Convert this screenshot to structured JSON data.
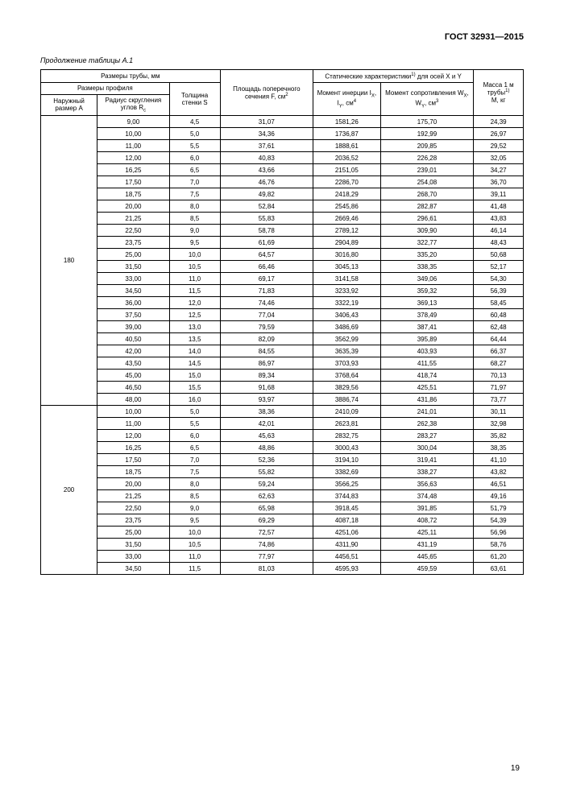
{
  "document": {
    "gost": "ГОСТ 32931—2015",
    "caption": "Продолжение таблицы А.1",
    "page": "19"
  },
  "headers": {
    "h1": "Размеры трубы, мм",
    "h2": "Площадь поперечного сечения F, см",
    "h3_pre": "Статические характеристики",
    "h3_post": " для осей X и Y",
    "h4_pre": "Масса 1 м трубы",
    "h4_post": " M, кг",
    "sub1": "Размеры профиля",
    "sub2": "Толщина стенки S",
    "sub3": "Момент инерции I",
    "sub3b": ", I",
    "sub3c": ", см",
    "sub4": "Момент сопротивления W",
    "sub4b": ", W",
    "sub4c": ", см",
    "left1": "Наружный размер A",
    "left2": "Радиус скругления углов R",
    "exp2": "2",
    "exp4": "4",
    "exp3": "3",
    "exp1": "1)",
    "subX": "X",
    "subY": "Y",
    "subC": "с"
  },
  "groups": [
    {
      "outer": "180",
      "rows": [
        [
          "9,00",
          "4,5",
          "31,07",
          "1581,26",
          "175,70",
          "24,39"
        ],
        [
          "10,00",
          "5,0",
          "34,36",
          "1736,87",
          "192,99",
          "26,97"
        ],
        [
          "11,00",
          "5,5",
          "37,61",
          "1888,61",
          "209,85",
          "29,52"
        ],
        [
          "12,00",
          "6,0",
          "40,83",
          "2036,52",
          "226,28",
          "32,05"
        ],
        [
          "16,25",
          "6,5",
          "43,66",
          "2151,05",
          "239,01",
          "34,27"
        ],
        [
          "17,50",
          "7,0",
          "46,76",
          "2286,70",
          "254,08",
          "36,70"
        ],
        [
          "18,75",
          "7,5",
          "49,82",
          "2418,29",
          "268,70",
          "39,11"
        ],
        [
          "20,00",
          "8,0",
          "52,84",
          "2545,86",
          "282,87",
          "41,48"
        ],
        [
          "21,25",
          "8,5",
          "55,83",
          "2669,46",
          "296,61",
          "43,83"
        ],
        [
          "22,50",
          "9,0",
          "58,78",
          "2789,12",
          "309,90",
          "46,14"
        ],
        [
          "23,75",
          "9,5",
          "61,69",
          "2904,89",
          "322,77",
          "48,43"
        ],
        [
          "25,00",
          "10,0",
          "64,57",
          "3016,80",
          "335,20",
          "50,68"
        ],
        [
          "31,50",
          "10,5",
          "66,46",
          "3045,13",
          "338,35",
          "52,17"
        ],
        [
          "33,00",
          "11,0",
          "69,17",
          "3141,58",
          "349,06",
          "54,30"
        ],
        [
          "34,50",
          "11,5",
          "71,83",
          "3233,92",
          "359,32",
          "56,39"
        ],
        [
          "36,00",
          "12,0",
          "74,46",
          "3322,19",
          "369,13",
          "58,45"
        ],
        [
          "37,50",
          "12,5",
          "77,04",
          "3406,43",
          "378,49",
          "60,48"
        ],
        [
          "39,00",
          "13,0",
          "79,59",
          "3486,69",
          "387,41",
          "62,48"
        ],
        [
          "40,50",
          "13,5",
          "82,09",
          "3562,99",
          "395,89",
          "64,44"
        ],
        [
          "42,00",
          "14,0",
          "84,55",
          "3635,39",
          "403,93",
          "66,37"
        ],
        [
          "43,50",
          "14,5",
          "86,97",
          "3703,93",
          "411,55",
          "68,27"
        ],
        [
          "45,00",
          "15,0",
          "89,34",
          "3768,64",
          "418,74",
          "70,13"
        ],
        [
          "46,50",
          "15,5",
          "91,68",
          "3829,56",
          "425,51",
          "71,97"
        ],
        [
          "48,00",
          "16,0",
          "93,97",
          "3886,74",
          "431,86",
          "73,77"
        ]
      ]
    },
    {
      "outer": "200",
      "rows": [
        [
          "10,00",
          "5,0",
          "38,36",
          "2410,09",
          "241,01",
          "30,11"
        ],
        [
          "11,00",
          "5,5",
          "42,01",
          "2623,81",
          "262,38",
          "32,98"
        ],
        [
          "12,00",
          "6,0",
          "45,63",
          "2832,75",
          "283,27",
          "35,82"
        ],
        [
          "16,25",
          "6,5",
          "48,86",
          "3000,43",
          "300,04",
          "38,35"
        ],
        [
          "17,50",
          "7,0",
          "52,36",
          "3194,10",
          "319,41",
          "41,10"
        ],
        [
          "18,75",
          "7,5",
          "55,82",
          "3382,69",
          "338,27",
          "43,82"
        ],
        [
          "20,00",
          "8,0",
          "59,24",
          "3566,25",
          "356,63",
          "46,51"
        ],
        [
          "21,25",
          "8,5",
          "62,63",
          "3744,83",
          "374,48",
          "49,16"
        ],
        [
          "22,50",
          "9,0",
          "65,98",
          "3918,45",
          "391,85",
          "51,79"
        ],
        [
          "23,75",
          "9,5",
          "69,29",
          "4087,18",
          "408,72",
          "54,39"
        ],
        [
          "25,00",
          "10,0",
          "72,57",
          "4251,06",
          "425,11",
          "56,96"
        ],
        [
          "31,50",
          "10,5",
          "74,86",
          "4311,90",
          "431,19",
          "58,76"
        ],
        [
          "33,00",
          "11,0",
          "77,97",
          "4456,51",
          "445,65",
          "61,20"
        ],
        [
          "34,50",
          "11,5",
          "81,03",
          "4595,93",
          "459,59",
          "63,61"
        ]
      ]
    }
  ]
}
